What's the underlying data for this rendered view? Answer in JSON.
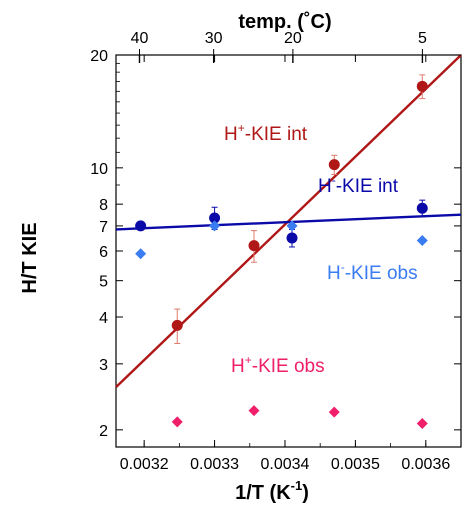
{
  "chart_data": {
    "type": "scatter",
    "title": "",
    "xlabel": "1/T (K",
    "xlabel_sup": "-1",
    "xlabel_close": ")",
    "ylabel": "H/T KIE",
    "top_axis_label": "temp. (˚C)",
    "xlim": [
      0.00316,
      0.00365
    ],
    "ylim": [
      1.8,
      20
    ],
    "y_scale": "log",
    "x_ticks": [
      "0.0032",
      "0.0033",
      "0.0034",
      "0.0035",
      "0.0036"
    ],
    "x_tick_values": [
      0.0032,
      0.0033,
      0.0034,
      0.0035,
      0.0036
    ],
    "y_ticks": [
      "2",
      "3",
      "4",
      "5",
      "6",
      "7",
      "8",
      "10",
      "20"
    ],
    "y_tick_values": [
      2,
      3,
      4,
      5,
      6,
      7,
      8,
      10,
      20
    ],
    "top_ticks": [
      "40",
      "30",
      "20",
      "5"
    ],
    "top_tick_values_c": [
      40,
      30,
      20,
      5
    ],
    "grid": false,
    "series": [
      {
        "name": "H+-KIE int",
        "label_main": "H",
        "label_sup": "+",
        "label_rest": "-KIE int",
        "color": "#b01717",
        "marker": "circle",
        "x": [
          0.003247,
          0.003356,
          0.00347,
          0.003595
        ],
        "y": [
          3.8,
          6.2,
          10.2,
          16.5
        ],
        "err": [
          0.4,
          0.6,
          0.6,
          1.2
        ],
        "fit": {
          "x": [
            0.00316,
            0.00365
          ],
          "y": [
            2.6,
            20
          ]
        }
      },
      {
        "name": "H--KIE int",
        "label_main": "H",
        "label_sup": "-",
        "label_rest": "-KIE int",
        "color": "#0a0aa8",
        "marker": "circle",
        "x": [
          0.003195,
          0.0033,
          0.00341,
          0.003595
        ],
        "y": [
          7.0,
          7.35,
          6.5,
          7.8
        ],
        "err": [
          0,
          0.5,
          0.35,
          0.4
        ],
        "fit": {
          "x": [
            0.00316,
            0.00365
          ],
          "y": [
            6.85,
            7.5
          ]
        }
      },
      {
        "name": "H--KIE obs",
        "label_main": "H",
        "label_sup": "-",
        "label_rest": "-KIE obs",
        "color": "#3a7cf2",
        "marker": "diamond",
        "x": [
          0.003195,
          0.0033,
          0.00341,
          0.003595
        ],
        "y": [
          5.9,
          7.0,
          7.0,
          6.4
        ],
        "err": [
          0,
          0,
          0,
          0
        ]
      },
      {
        "name": "H+-KIE obs",
        "label_main": "H",
        "label_sup": "+",
        "label_rest": "-KIE obs",
        "color": "#ef1f6a",
        "marker": "diamond",
        "x": [
          0.003247,
          0.003356,
          0.00347,
          0.003595
        ],
        "y": [
          2.1,
          2.25,
          2.23,
          2.08
        ],
        "err": [
          0,
          0,
          0,
          0
        ]
      }
    ]
  }
}
